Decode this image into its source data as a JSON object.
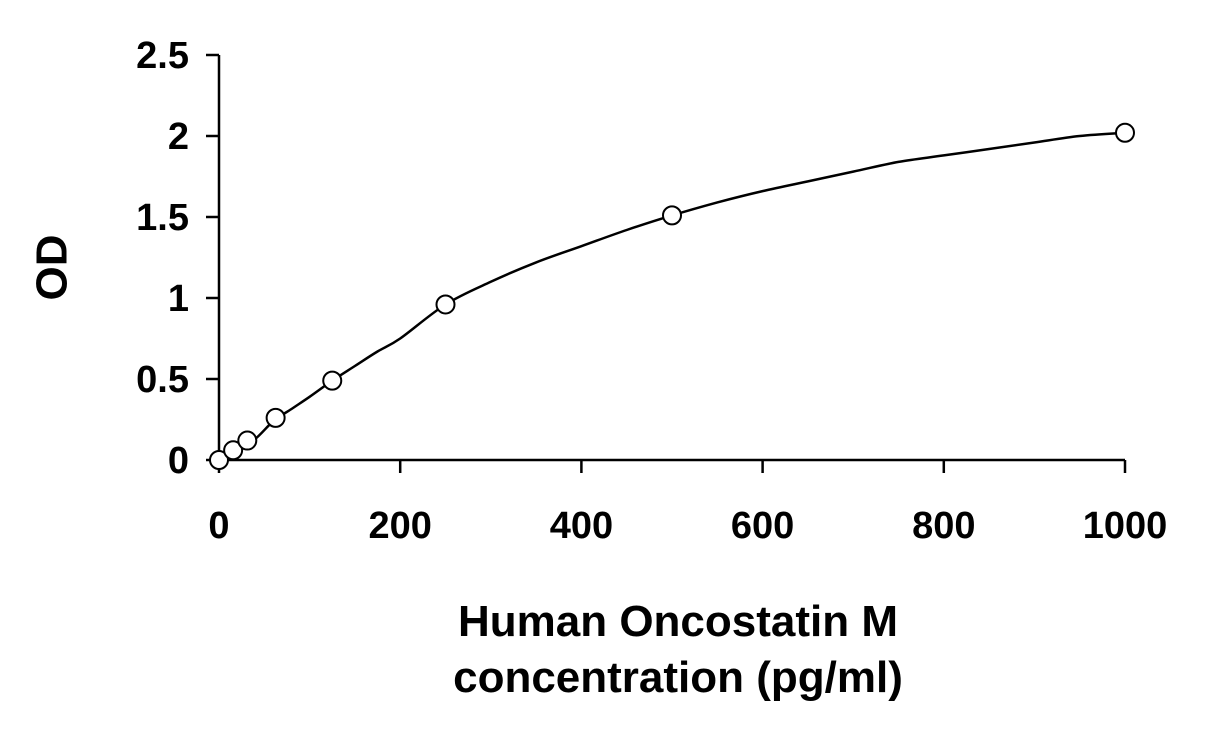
{
  "chart_data": {
    "type": "scatter",
    "xlabel_lines": [
      "Human Oncostatin M",
      "concentration (pg/ml)"
    ],
    "ylabel": "OD",
    "xlim": [
      0,
      1000
    ],
    "ylim": [
      0,
      2.5
    ],
    "x_ticks": [
      0,
      200,
      400,
      600,
      800,
      1000
    ],
    "x_tick_labels": [
      "0",
      "200",
      "400",
      "600",
      "800",
      "1000"
    ],
    "y_ticks": [
      0,
      0.5,
      1,
      1.5,
      2,
      2.5
    ],
    "y_tick_labels": [
      "0",
      "0.5",
      "1",
      "1.5",
      "2",
      "2.5"
    ],
    "grid": false,
    "points": {
      "x": [
        0,
        15.6,
        31.25,
        62.5,
        125,
        250,
        500,
        1000
      ],
      "y": [
        0.0,
        0.06,
        0.12,
        0.26,
        0.49,
        0.96,
        1.51,
        2.02
      ]
    },
    "curve": {
      "x": [
        0,
        20,
        40,
        60,
        80,
        100,
        125,
        150,
        175,
        200,
        250,
        300,
        350,
        400,
        450,
        500,
        550,
        600,
        650,
        700,
        750,
        800,
        850,
        900,
        950,
        1000
      ],
      "y": [
        0.0,
        0.065,
        0.13,
        0.24,
        0.315,
        0.39,
        0.49,
        0.58,
        0.67,
        0.75,
        0.96,
        1.1,
        1.22,
        1.32,
        1.42,
        1.51,
        1.59,
        1.66,
        1.72,
        1.78,
        1.84,
        1.88,
        1.92,
        1.96,
        2.0,
        2.02
      ]
    }
  }
}
